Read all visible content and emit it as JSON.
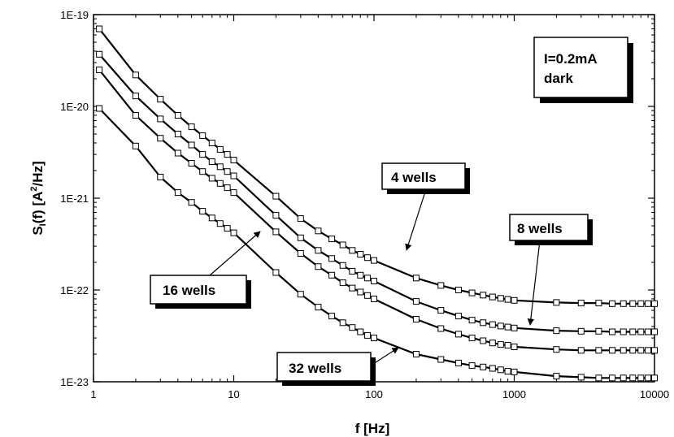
{
  "chart_data": {
    "type": "line",
    "xlabel": "f [Hz]",
    "ylabel_main": "S",
    "ylabel_sub": "I",
    "ylabel_mid": "(f) [A",
    "ylabel_sup": "2",
    "ylabel_end": "/Hz]",
    "xscale": "log",
    "yscale": "log",
    "xlim": [
      1,
      10000
    ],
    "ylim": [
      1e-23,
      1e-19
    ],
    "x_ticks": [
      1,
      10,
      100,
      1000,
      10000
    ],
    "x_tick_labels": [
      "1",
      "10",
      "100",
      "1000",
      "10000"
    ],
    "y_ticks": [
      1e-23,
      1e-22,
      1e-21,
      1e-20,
      1e-19
    ],
    "y_tick_labels": [
      "1E-23",
      "1E-22",
      "1E-21",
      "1E-20",
      "1E-19"
    ],
    "grid": false,
    "legend_box": {
      "line1": "I=0.2mA",
      "line2": "dark",
      "placement": "top-right"
    },
    "series": [
      {
        "name": "4 wells",
        "x": [
          1.1,
          2,
          3,
          4,
          5,
          6,
          7,
          8,
          9,
          10,
          20,
          30,
          40,
          50,
          60,
          70,
          80,
          90,
          100,
          200,
          300,
          400,
          500,
          600,
          700,
          800,
          900,
          1000,
          2000,
          3000,
          4000,
          5000,
          6000,
          7000,
          8000,
          9000,
          10000
        ],
        "y": [
          7e-20,
          2.2e-20,
          1.2e-20,
          8e-21,
          6e-21,
          4.8e-21,
          4e-21,
          3.4e-21,
          3e-21,
          2.6e-21,
          1.05e-21,
          6e-22,
          4.4e-22,
          3.6e-22,
          3.1e-22,
          2.7e-22,
          2.45e-22,
          2.25e-22,
          2.1e-22,
          1.35e-22,
          1.12e-22,
          1e-22,
          9.3e-23,
          8.8e-23,
          8.4e-23,
          8.1e-23,
          7.9e-23,
          7.7e-23,
          7.3e-23,
          7.2e-23,
          7.2e-23,
          7.1e-23,
          7.1e-23,
          7.1e-23,
          7.1e-23,
          7.1e-23,
          7.1e-23
        ],
        "label_text": "4 wells"
      },
      {
        "name": "8 wells",
        "x": [
          1.1,
          2,
          3,
          4,
          5,
          6,
          7,
          8,
          9,
          10,
          20,
          30,
          40,
          50,
          60,
          70,
          80,
          90,
          100,
          200,
          300,
          400,
          500,
          600,
          700,
          800,
          900,
          1000,
          2000,
          3000,
          4000,
          5000,
          6000,
          7000,
          8000,
          9000,
          10000
        ],
        "y": [
          3.7e-20,
          1.3e-20,
          7.3e-21,
          5e-21,
          3.8e-21,
          3e-21,
          2.5e-21,
          2.2e-21,
          1.95e-21,
          1.75e-21,
          6.5e-22,
          3.7e-22,
          2.7e-22,
          2.2e-22,
          1.85e-22,
          1.6e-22,
          1.45e-22,
          1.35e-22,
          1.25e-22,
          7.5e-23,
          6e-23,
          5.2e-23,
          4.7e-23,
          4.4e-23,
          4.2e-23,
          4.05e-23,
          3.95e-23,
          3.85e-23,
          3.6e-23,
          3.55e-23,
          3.55e-23,
          3.5e-23,
          3.5e-23,
          3.5e-23,
          3.5e-23,
          3.5e-23,
          3.5e-23
        ],
        "label_text": "8 wells"
      },
      {
        "name": "16 wells",
        "x": [
          1.1,
          2,
          3,
          4,
          5,
          6,
          7,
          8,
          9,
          10,
          20,
          30,
          40,
          50,
          60,
          70,
          80,
          90,
          100,
          200,
          300,
          400,
          500,
          600,
          700,
          800,
          900,
          1000,
          2000,
          3000,
          4000,
          5000,
          6000,
          7000,
          8000,
          9000,
          10000
        ],
        "y": [
          2.5e-20,
          8e-21,
          4.5e-21,
          3.1e-21,
          2.4e-21,
          1.95e-21,
          1.65e-21,
          1.45e-21,
          1.3e-21,
          1.15e-21,
          4.3e-22,
          2.5e-22,
          1.8e-22,
          1.45e-22,
          1.2e-22,
          1.05e-22,
          9.5e-23,
          8.7e-23,
          8e-23,
          4.8e-23,
          3.8e-23,
          3.3e-23,
          3e-23,
          2.8e-23,
          2.65e-23,
          2.55e-23,
          2.5e-23,
          2.4e-23,
          2.25e-23,
          2.2e-23,
          2.2e-23,
          2.2e-23,
          2.2e-23,
          2.2e-23,
          2.2e-23,
          2.2e-23,
          2.2e-23
        ],
        "label_text": "16 wells"
      },
      {
        "name": "32 wells",
        "x": [
          1.1,
          2,
          3,
          4,
          5,
          6,
          7,
          8,
          9,
          10,
          20,
          30,
          40,
          50,
          60,
          70,
          80,
          90,
          100,
          200,
          300,
          400,
          500,
          600,
          700,
          800,
          900,
          1000,
          2000,
          3000,
          4000,
          5000,
          6000,
          7000,
          8000,
          9000,
          10000
        ],
        "y": [
          9.5e-21,
          3.7e-21,
          1.7e-21,
          1.15e-21,
          9e-22,
          7.2e-22,
          6.1e-22,
          5.3e-22,
          4.7e-22,
          4.2e-22,
          1.55e-22,
          9e-23,
          6.5e-23,
          5.2e-23,
          4.4e-23,
          3.9e-23,
          3.5e-23,
          3.2e-23,
          3e-23,
          2e-23,
          1.75e-23,
          1.6e-23,
          1.5e-23,
          1.45e-23,
          1.4e-23,
          1.35e-23,
          1.3e-23,
          1.28e-23,
          1.15e-23,
          1.12e-23,
          1.1e-23,
          1.1e-23,
          1.1e-23,
          1.1e-23,
          1.1e-23,
          1.1e-23,
          1.1e-23
        ],
        "label_text": "32 wells"
      }
    ]
  }
}
